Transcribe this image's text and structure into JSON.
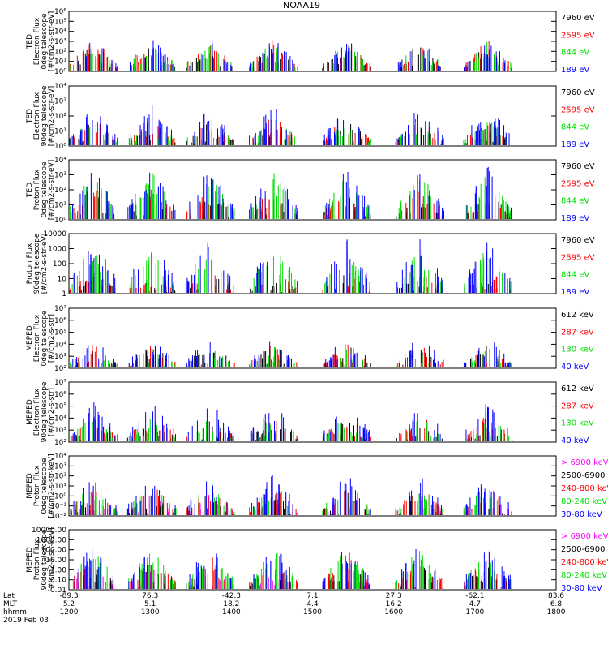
{
  "title": "NOAA19",
  "colors": {
    "black": "#000000",
    "red": "#ff0000",
    "green": "#00dd00",
    "blue": "#0000ff",
    "magenta": "#ff00ff"
  },
  "chart_data": [
    {
      "type": "scatter",
      "ylabel": [
        "TED",
        "Electron Flux",
        "0deg telescope",
        "[#/cm2-s-str-eV]"
      ],
      "ylim": [
        1,
        1000000
      ],
      "log": true,
      "yticks": [
        "10⁰",
        "10¹",
        "10²",
        "10³",
        "10⁴",
        "10⁵",
        "10⁶"
      ],
      "series": [
        {
          "name": "7960 eV",
          "color": "#000000",
          "level": 0.12
        },
        {
          "name": "2595 eV",
          "color": "#ff0000",
          "level": 0.2
        },
        {
          "name": "844 eV",
          "color": "#00dd00",
          "level": 0.16
        },
        {
          "name": "189 eV",
          "color": "#0000ff",
          "level": 0.22
        }
      ]
    },
    {
      "type": "scatter",
      "ylabel": [
        "TED",
        "Electron Flux",
        "90deg telescope",
        "[#/cm2-s-str-eV]"
      ],
      "ylim": [
        1,
        10000
      ],
      "log": true,
      "yticks": [
        "10⁰",
        "10¹",
        "10²",
        "10³",
        "10⁴"
      ],
      "series": [
        {
          "name": "7960 eV",
          "color": "#000000",
          "level": 0.08
        },
        {
          "name": "2595 eV",
          "color": "#ff0000",
          "level": 0.18
        },
        {
          "name": "844 eV",
          "color": "#00dd00",
          "level": 0.15
        },
        {
          "name": "189 eV",
          "color": "#0000ff",
          "level": 0.35
        }
      ]
    },
    {
      "type": "scatter",
      "ylabel": [
        "TED",
        "Proton Flux",
        "0deg telescope",
        "[#/cm2-s-str-eV]"
      ],
      "ylim": [
        1,
        10000
      ],
      "log": true,
      "yticks": [
        "10⁰",
        "10¹",
        "10²",
        "10³",
        "10⁴"
      ],
      "series": [
        {
          "name": "7960 eV",
          "color": "#000000",
          "level": 0.1
        },
        {
          "name": "2595 eV",
          "color": "#ff0000",
          "level": 0.2
        },
        {
          "name": "844 eV",
          "color": "#00dd00",
          "level": 0.45
        },
        {
          "name": "189 eV",
          "color": "#0000ff",
          "level": 0.55
        }
      ]
    },
    {
      "type": "scatter",
      "ylabel": [
        "Proton Flux",
        "90deg telescope",
        "[#/cm2-s-str-eV]"
      ],
      "ylim": [
        1,
        10000
      ],
      "log": true,
      "yticks": [
        "1",
        "10",
        "100",
        "1000",
        "10000"
      ],
      "series": [
        {
          "name": "7960 eV",
          "color": "#000000",
          "level": 0.0
        },
        {
          "name": "2595 eV",
          "color": "#ff0000",
          "level": 0.05
        },
        {
          "name": "844 eV",
          "color": "#00dd00",
          "level": 0.45
        },
        {
          "name": "189 eV",
          "color": "#0000ff",
          "level": 0.6
        }
      ]
    },
    {
      "type": "scatter",
      "ylabel": [
        "MEPED",
        "Electron Flux",
        "0deg telescope",
        "[#/cm2-s-str]"
      ],
      "ylim": [
        100,
        10000000
      ],
      "log": true,
      "yticks": [
        "10²",
        "10³",
        "10⁴",
        "10⁵",
        "10⁶",
        "10⁷"
      ],
      "series": [
        {
          "name": "612 keV",
          "color": "#000000",
          "level": 0.08
        },
        {
          "name": "287 keV",
          "color": "#ff0000",
          "level": 0.06
        },
        {
          "name": "130 keV",
          "color": "#00dd00",
          "level": 0.02
        },
        {
          "name": "40 keV",
          "color": "#0000ff",
          "level": 0.2
        }
      ]
    },
    {
      "type": "scatter",
      "ylabel": [
        "MEPED",
        "Electron Flux",
        "90deg telescope",
        "[#/cm2-s-str]"
      ],
      "ylim": [
        100,
        10000000
      ],
      "log": true,
      "yticks": [
        "10²",
        "10³",
        "10⁴",
        "10⁵",
        "10⁶",
        "10⁷"
      ],
      "series": [
        {
          "name": "612 keV",
          "color": "#000000",
          "level": 0.06
        },
        {
          "name": "287 keV",
          "color": "#ff0000",
          "level": 0.14
        },
        {
          "name": "130 keV",
          "color": "#00dd00",
          "level": 0.1
        },
        {
          "name": "40 keV",
          "color": "#0000ff",
          "level": 0.35
        }
      ]
    },
    {
      "type": "scatter",
      "ylabel": [
        "MEPED",
        "Proton Flux",
        "0deg telescope",
        "[#/cm2-s-str-keV]"
      ],
      "ylim": [
        0.01,
        10000
      ],
      "log": true,
      "yticks": [
        "10⁻²",
        "10⁻¹",
        "10⁰",
        "10¹",
        "10²",
        "10³",
        "10⁴"
      ],
      "series": [
        {
          "name": "> 6900 keV",
          "color": "#ff00ff",
          "level": 0.02
        },
        {
          "name": "2500-6900",
          "color": "#000000",
          "level": 0.05
        },
        {
          "name": "240-800 keV",
          "color": "#ff0000",
          "level": 0.18
        },
        {
          "name": "80-240 keV",
          "color": "#00dd00",
          "level": 0.25
        },
        {
          "name": "30-80 keV",
          "color": "#0000ff",
          "level": 0.38
        }
      ]
    },
    {
      "type": "scatter",
      "ylabel": [
        "MEPED",
        "Proton Flux",
        "90deg telescope",
        "[#/cm2-s-str-keV]"
      ],
      "ylim": [
        0.01,
        10000
      ],
      "log": true,
      "yticks": [
        "0.01",
        "0.10",
        "1.00",
        "10.00",
        "100.00",
        "1000.00",
        "10000.00"
      ],
      "series": [
        {
          "name": "> 6900 keV",
          "color": "#ff00ff",
          "level": 0.03
        },
        {
          "name": "2500-6900",
          "color": "#000000",
          "level": 0.12
        },
        {
          "name": "240-800 keV",
          "color": "#ff0000",
          "level": 0.25
        },
        {
          "name": "80-240 keV",
          "color": "#00dd00",
          "level": 0.38
        },
        {
          "name": "30-80 keV",
          "color": "#0000ff",
          "level": 0.45
        }
      ]
    }
  ],
  "x_axis": {
    "row_labels": [
      "Lat",
      "MLT",
      "hhmm"
    ],
    "date": "2019 Feb 03",
    "lat": [
      "-89.3",
      "76.3",
      "-42.3",
      "7.1",
      "27.3",
      "-62.1",
      "83.6"
    ],
    "mlt": [
      "5.2",
      "5.1",
      "18.2",
      "4.4",
      "16.2",
      "4.7",
      "6.8"
    ],
    "hhmm": [
      "1200",
      "1300",
      "1400",
      "1500",
      "1600",
      "1700",
      "1800"
    ]
  }
}
